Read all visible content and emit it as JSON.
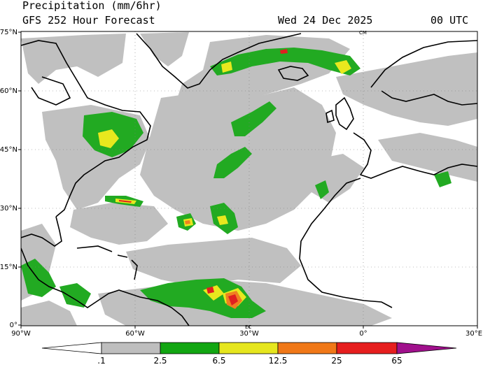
{
  "header": {
    "title": "Precipitation (mm/6hr)",
    "subtitle": "GFS 252 Hour Forecast",
    "valid_time": "Wed 24 Dec 2025",
    "utc": "00 UTC"
  },
  "map": {
    "lat_labels": [
      "75°N",
      "60°N",
      "45°N",
      "30°N",
      "15°N",
      "0°"
    ],
    "lon_labels": [
      "90°W",
      "60°W",
      "30°W",
      "0°",
      "30°E"
    ],
    "marks": [
      "CM",
      "EC"
    ]
  },
  "colorbar": {
    "labels": [
      ".1",
      "2.5",
      "6.5",
      "12.5",
      "25",
      "65"
    ],
    "colors": [
      "#ffffff",
      "#bebebe",
      "#12a612",
      "#e6e61e",
      "#f07818",
      "#e61e1e",
      "#a0108c"
    ]
  },
  "palette": {
    "ocean": "#ffffff",
    "light_precip": "#c0c0c0",
    "green": "#22aa22",
    "yellow": "#e8e81e",
    "orange": "#f08020",
    "red": "#e02020",
    "coast": "#000000"
  }
}
